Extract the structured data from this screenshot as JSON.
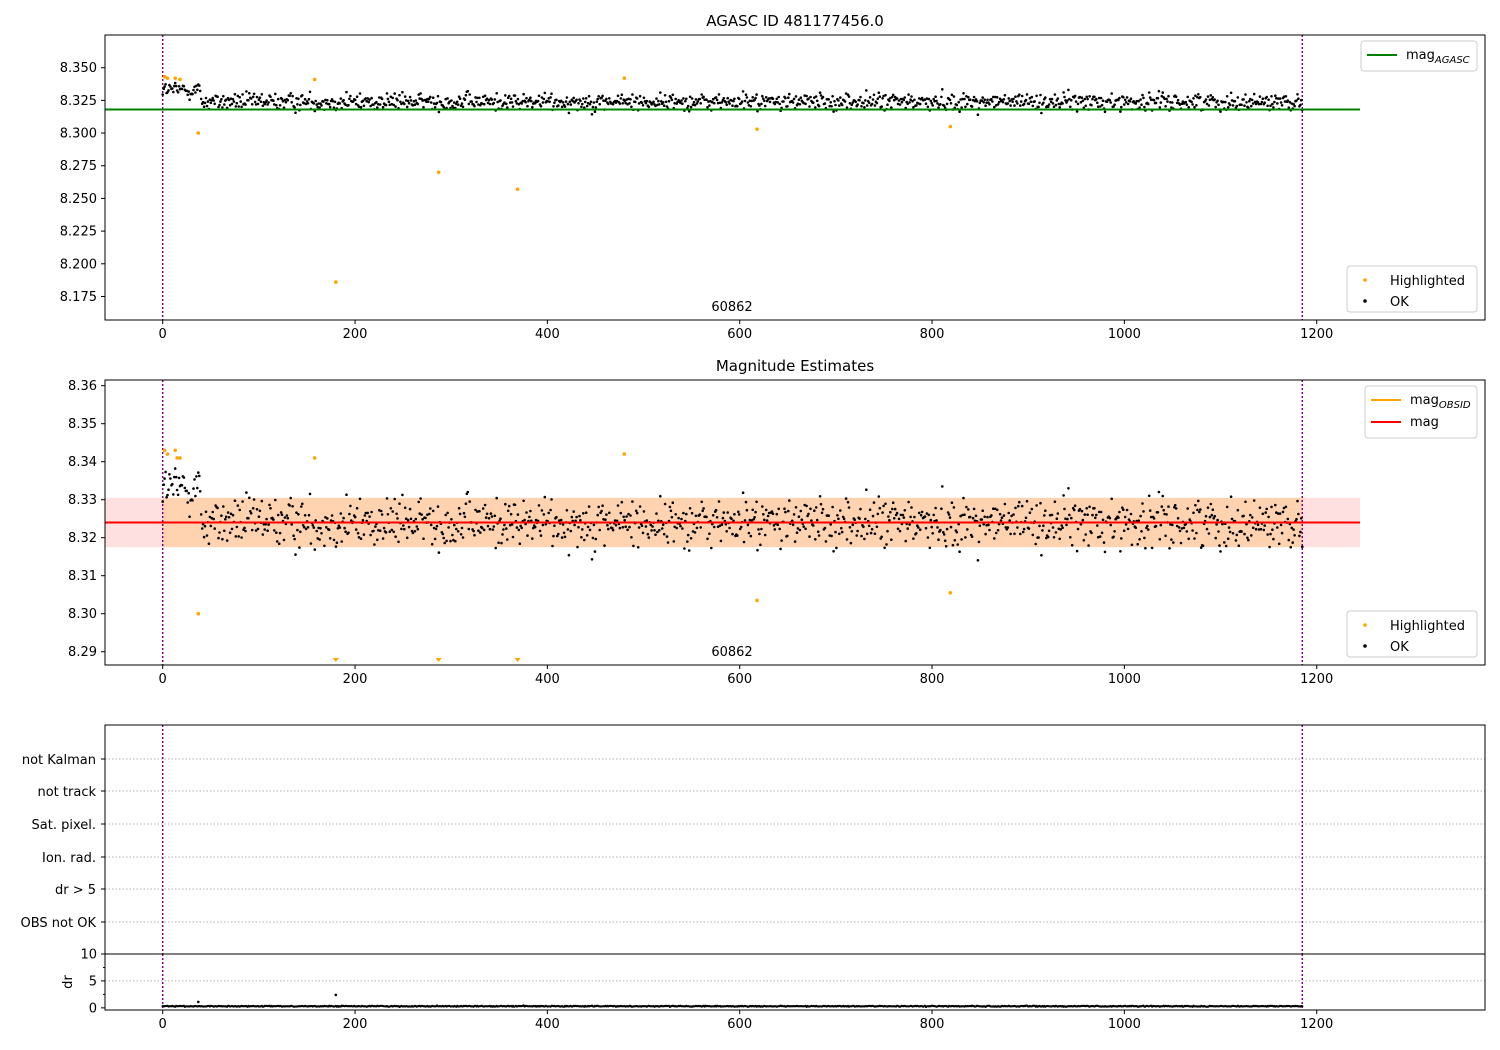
{
  "chart_data": [
    {
      "type": "scatter",
      "title": "AGASC ID 481177456.0",
      "xlim": [
        -60,
        1375
      ],
      "ylim": [
        8.157,
        8.375
      ],
      "xticks": [
        0,
        200,
        400,
        600,
        800,
        1000,
        1200
      ],
      "xtick_labels": [
        "0",
        "200",
        "400",
        "600",
        "800",
        "1000",
        "1200"
      ],
      "yticks": [
        8.175,
        8.2,
        8.225,
        8.25,
        8.275,
        8.3,
        8.325,
        8.35
      ],
      "ytick_labels": [
        "8.175",
        "8.200",
        "8.225",
        "8.250",
        "8.275",
        "8.300",
        "8.325",
        "8.350"
      ],
      "obsid_boundaries": [
        0,
        1185
      ],
      "obsid_label": "60862",
      "obsid_label_x": 592,
      "mag_agasc": {
        "value": 8.318,
        "x_range": [
          -60,
          1245
        ]
      },
      "highlighted": {
        "x": [
          2,
          5,
          13,
          18,
          37,
          158,
          180,
          287,
          369,
          480,
          618,
          819
        ],
        "y": [
          8.343,
          8.342,
          8.342,
          8.341,
          8.3,
          8.341,
          8.186,
          8.27,
          8.257,
          8.342,
          8.303,
          8.305
        ]
      },
      "ok_series": {
        "n": 1185,
        "x_range": [
          0,
          1185
        ],
        "center": 8.324,
        "spread": 0.0055
      },
      "legend_top": [
        {
          "label": "mag",
          "subscript": "AGASC",
          "color": "#008000"
        }
      ],
      "legend_bottom": [
        {
          "label": "Highlighted",
          "color": "#ffa500"
        },
        {
          "label": "OK",
          "color": "#000000"
        }
      ]
    },
    {
      "type": "scatter",
      "title": "Magnitude Estimates",
      "xlim": [
        -60,
        1375
      ],
      "ylim": [
        8.2865,
        8.3615
      ],
      "xticks": [
        0,
        200,
        400,
        600,
        800,
        1000,
        1200
      ],
      "xtick_labels": [
        "0",
        "200",
        "400",
        "600",
        "800",
        "1000",
        "1200"
      ],
      "yticks": [
        8.29,
        8.3,
        8.31,
        8.32,
        8.33,
        8.34,
        8.35,
        8.36
      ],
      "ytick_labels": [
        "8.29",
        "8.30",
        "8.31",
        "8.32",
        "8.33",
        "8.34",
        "8.35",
        "8.36"
      ],
      "obsid_boundaries": [
        0,
        1185
      ],
      "obsid_label": "60862",
      "obsid_label_x": 592,
      "mag": {
        "value": 8.324,
        "band": [
          8.3175,
          8.3305
        ],
        "x_range": [
          -60,
          1245
        ]
      },
      "mag_obsid": {
        "value": 8.324,
        "band": [
          8.3175,
          8.3305
        ],
        "x_range": [
          0,
          1185
        ]
      },
      "highlighted": {
        "x": [
          2,
          5,
          13,
          15,
          18,
          37,
          158,
          480,
          618,
          819
        ],
        "y": [
          8.343,
          8.342,
          8.343,
          8.341,
          8.341,
          8.3,
          8.341,
          8.342,
          8.3035,
          8.3055
        ]
      },
      "off_scale_low_x": [
        180,
        287,
        369
      ],
      "ok_series": {
        "n": 1185,
        "x_range": [
          0,
          1185
        ],
        "center": 8.324,
        "spread": 0.0055
      },
      "legend_top": [
        {
          "label": "mag",
          "subscript": "OBSID",
          "color": "#ffa500"
        },
        {
          "label": "mag",
          "subscript": "",
          "color": "#ff0000"
        }
      ],
      "legend_bottom": [
        {
          "label": "Highlighted",
          "color": "#ffa500"
        },
        {
          "label": "OK",
          "color": "#000000"
        }
      ]
    },
    {
      "type": "scatter",
      "title": "",
      "xlim": [
        -60,
        1375
      ],
      "flag_rows": [
        "not Kalman",
        "not track",
        "Sat. pixel.",
        "Ion. rad.",
        "dr > 5",
        "OBS not OK"
      ],
      "obsid_boundaries": [
        0,
        1185
      ]
    },
    {
      "type": "line",
      "title": "",
      "ylabel": "dr",
      "xlim": [
        -60,
        1375
      ],
      "ylim": [
        -0.4,
        10
      ],
      "xticks": [
        0,
        200,
        400,
        600,
        800,
        1000,
        1200
      ],
      "xtick_labels": [
        "0",
        "200",
        "400",
        "600",
        "800",
        "1000",
        "1200"
      ],
      "yticks": [
        0,
        5,
        10
      ],
      "ytick_labels": [
        "0",
        "5",
        "10"
      ],
      "obsid_boundaries": [
        0,
        1185
      ],
      "outliers": {
        "x": [
          37,
          180
        ],
        "y": [
          1.1,
          2.4
        ]
      },
      "dr_series": {
        "n": 1185,
        "x_range": [
          0,
          1185
        ],
        "typical": 0.3
      }
    }
  ]
}
